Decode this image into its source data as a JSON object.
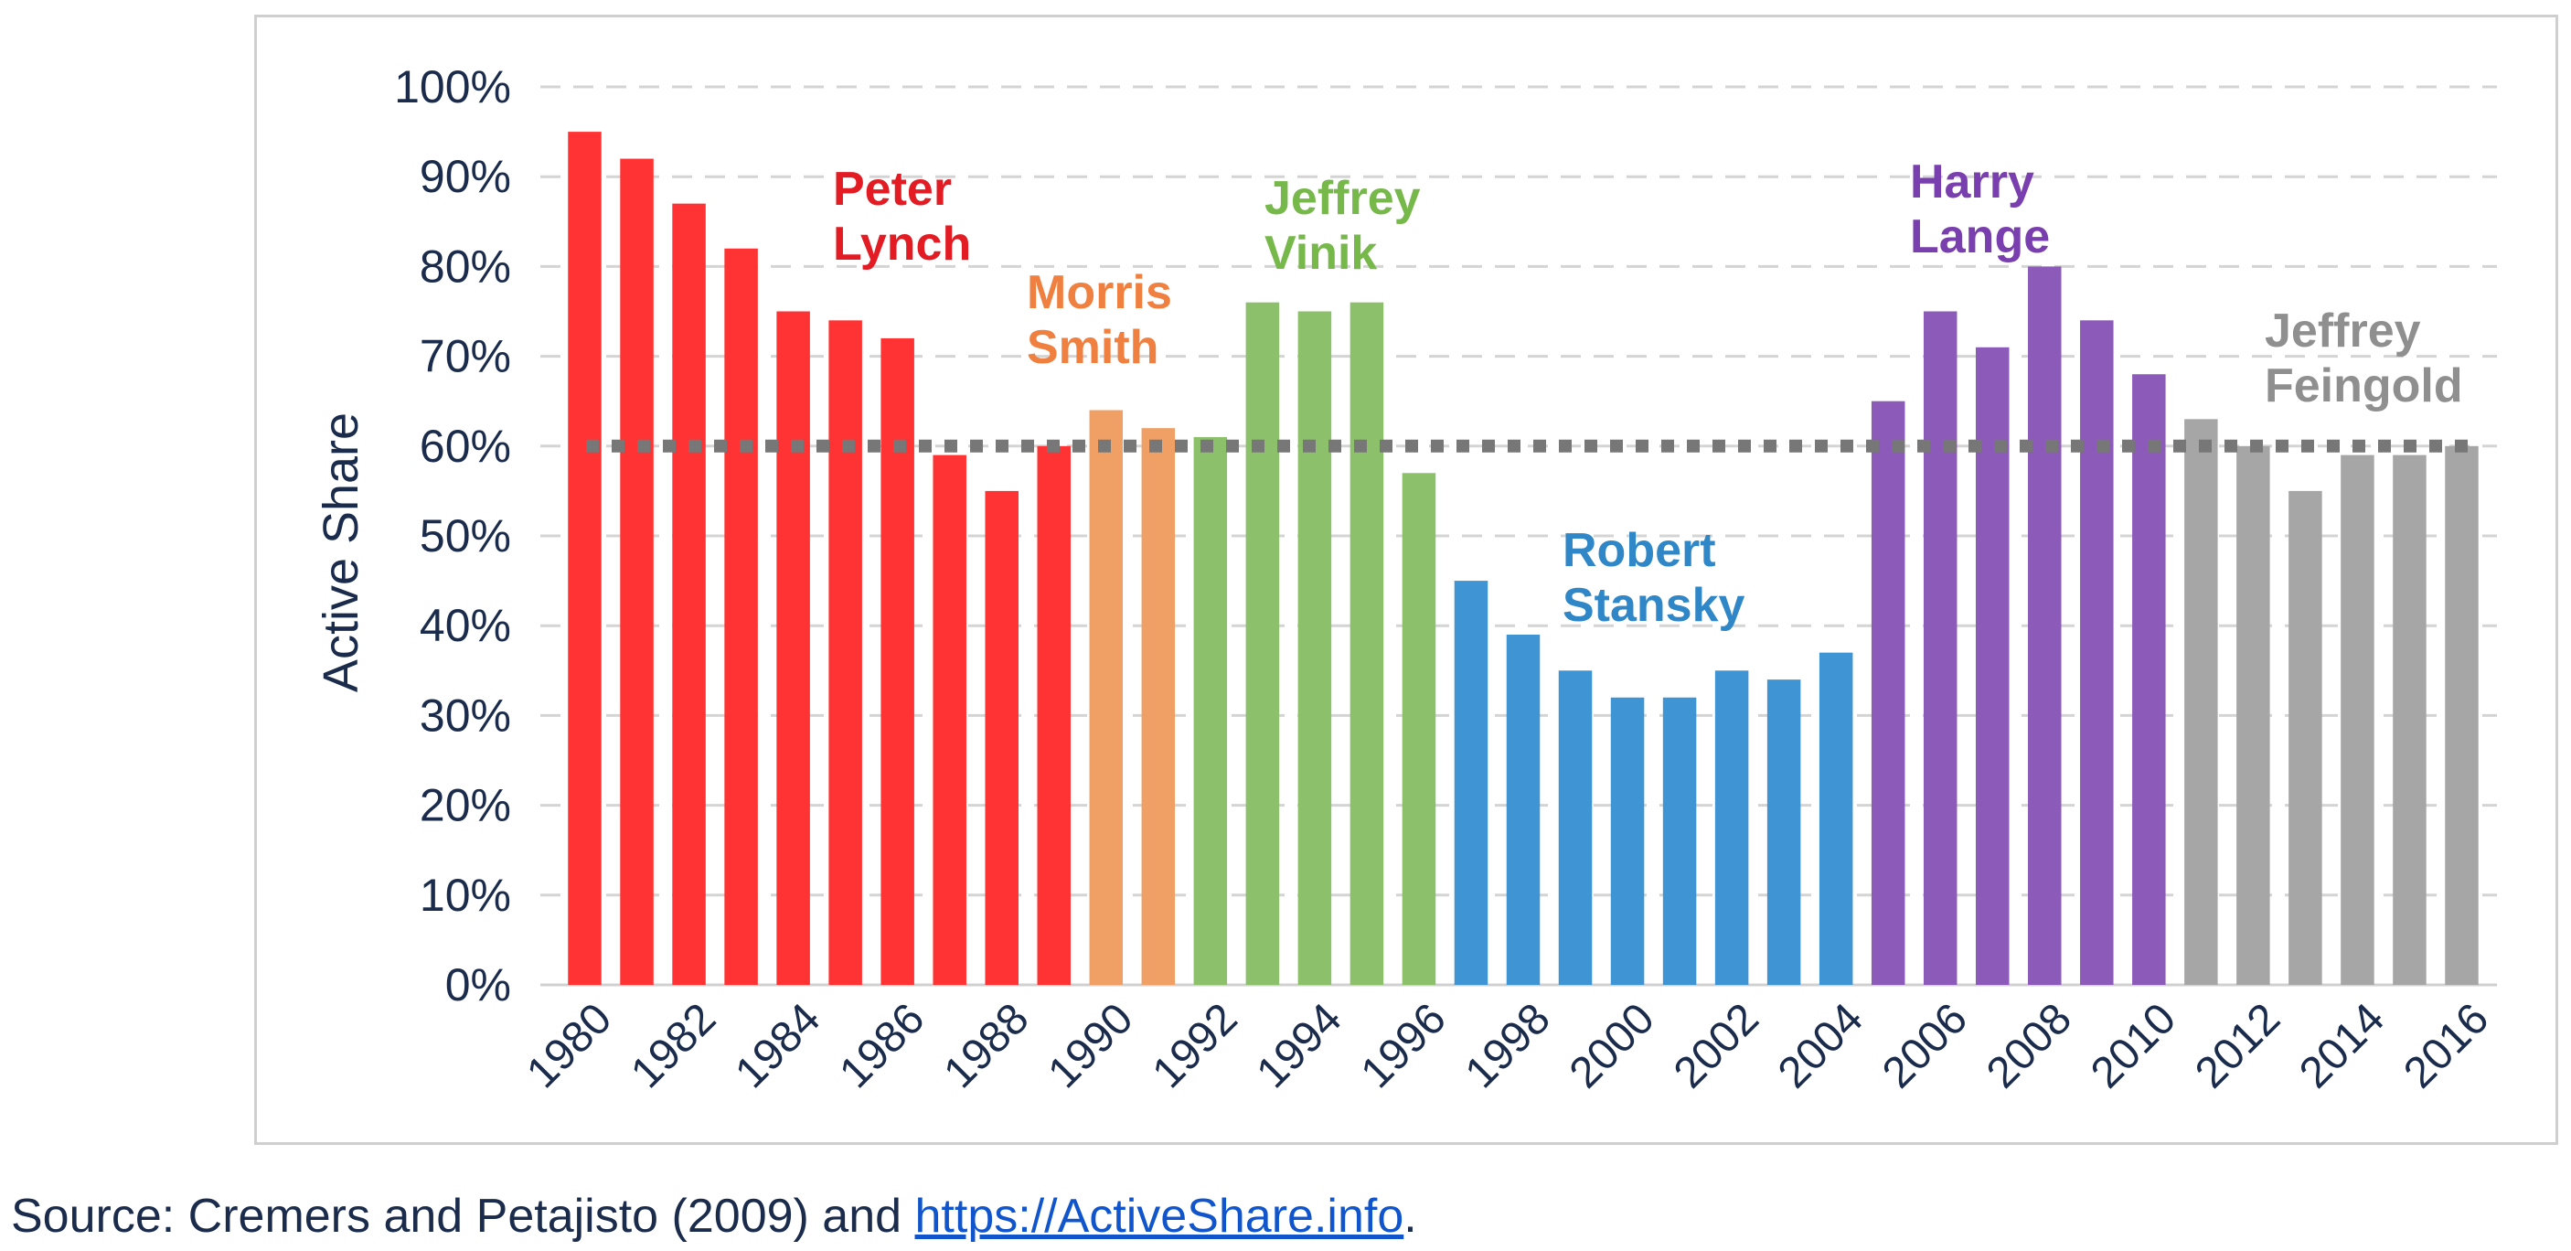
{
  "chart_data": {
    "type": "bar",
    "xlabel": "",
    "ylabel": "Active Share",
    "ylim": [
      0,
      100
    ],
    "y_ticks": [
      "0%",
      "10%",
      "20%",
      "30%",
      "40%",
      "50%",
      "60%",
      "70%",
      "80%",
      "90%",
      "100%"
    ],
    "x_tick_labels": [
      "1980",
      "1982",
      "1984",
      "1986",
      "1988",
      "1990",
      "1992",
      "1994",
      "1996",
      "1998",
      "2000",
      "2002",
      "2004",
      "2006",
      "2008",
      "2010",
      "2012",
      "2014",
      "2016"
    ],
    "grid": true,
    "reference_line": {
      "value": 60,
      "style": "dotted",
      "color": "#777777"
    },
    "categories": [
      "1980",
      "1981",
      "1982",
      "1983",
      "1984",
      "1985",
      "1986",
      "1987",
      "1988",
      "1989",
      "1990",
      "1991",
      "1992",
      "1993",
      "1994",
      "1995",
      "1996",
      "1997",
      "1998",
      "1999",
      "2000",
      "2001",
      "2002",
      "2003",
      "2004",
      "2005",
      "2006",
      "2007",
      "2008",
      "2009",
      "2010",
      "2011",
      "2012",
      "2013",
      "2014",
      "2015",
      "2016"
    ],
    "series": [
      {
        "name": "Peter Lynch",
        "label_lines": [
          "Peter",
          "Lynch"
        ],
        "color": "#ff3333",
        "x": [
          "1980",
          "1981",
          "1982",
          "1983",
          "1984",
          "1985",
          "1986",
          "1987",
          "1988",
          "1989"
        ],
        "values": [
          95,
          92,
          87,
          82,
          75,
          74,
          72,
          59,
          55,
          60
        ]
      },
      {
        "name": "Morris Smith",
        "label_lines": [
          "Morris",
          "Smith"
        ],
        "color": "#f0a065",
        "x": [
          "1990",
          "1991"
        ],
        "values": [
          64,
          62
        ]
      },
      {
        "name": "Jeffrey Vinik",
        "label_lines": [
          "Jeffrey",
          "Vinik"
        ],
        "color": "#8dc06a",
        "x": [
          "1992",
          "1993",
          "1994",
          "1995",
          "1996"
        ],
        "values": [
          61,
          76,
          75,
          76,
          57
        ]
      },
      {
        "name": "Robert Stansky",
        "label_lines": [
          "Robert",
          "Stansky"
        ],
        "color": "#3f95d3",
        "x": [
          "1997",
          "1998",
          "1999",
          "2000",
          "2001",
          "2002",
          "2003",
          "2004"
        ],
        "values": [
          45,
          39,
          35,
          32,
          32,
          35,
          34,
          37
        ]
      },
      {
        "name": "Harry Lange",
        "label_lines": [
          "Harry",
          "Lange"
        ],
        "color": "#8c5ab8",
        "x": [
          "2005",
          "2006",
          "2007",
          "2008",
          "2009",
          "2010"
        ],
        "values": [
          65,
          75,
          71,
          80,
          74,
          68
        ]
      },
      {
        "name": "Jeffrey Feingold",
        "label_lines": [
          "Jeffrey",
          "Feingold"
        ],
        "color": "#a6a6a6",
        "x": [
          "2011",
          "2012",
          "2013",
          "2014",
          "2015",
          "2016"
        ],
        "values": [
          63,
          60,
          55,
          59,
          59,
          60
        ]
      }
    ],
    "label_colors": {
      "Peter Lynch": "#e31b23",
      "Morris Smith": "#f08040",
      "Jeffrey Vinik": "#77b84a",
      "Robert Stansky": "#2f87c8",
      "Harry Lange": "#7a3fae",
      "Jeffrey Feingold": "#8f8f8f"
    },
    "axis_text_color": "#1a2b4c"
  },
  "source": {
    "prefix": "Source: Cremers and Petajisto (2009) and ",
    "link_text": "https://ActiveShare.info",
    "suffix": "."
  }
}
